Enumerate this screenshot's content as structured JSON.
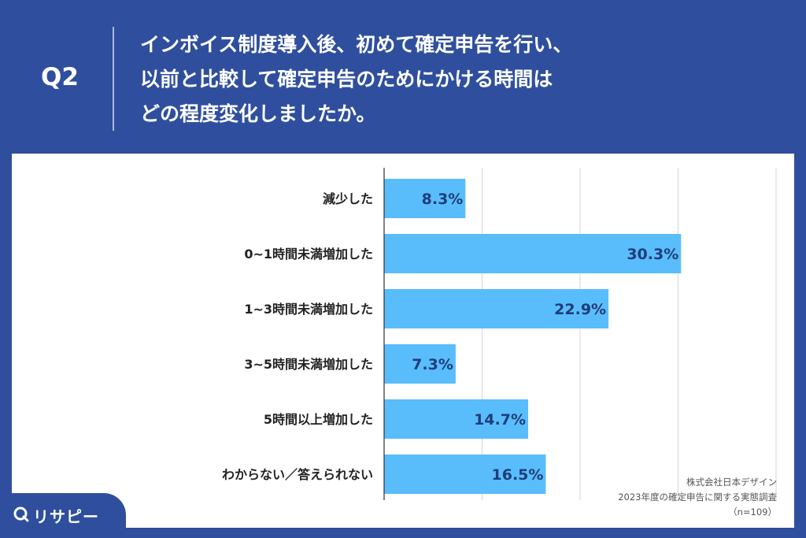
{
  "header": {
    "question_label": "Q2",
    "title_lines": [
      "インボイス制度導入後、初めて確定申告を行い、",
      "以前と比較して確定申告のためにかける時間は",
      "どの程度変化しましたか。"
    ]
  },
  "chart_data": {
    "type": "bar",
    "orientation": "horizontal",
    "categories": [
      "減少した",
      "0~1時間未満増加した",
      "1~3時間未満増加した",
      "3~5時間未満増加した",
      "5時間以上増加した",
      "わからない／答えられない"
    ],
    "values": [
      8.3,
      30.3,
      22.9,
      7.3,
      14.7,
      16.5
    ],
    "value_labels": [
      "8.3%",
      "30.3%",
      "22.9%",
      "7.3%",
      "14.7%",
      "16.5%"
    ],
    "unit": "%",
    "xlim": [
      0,
      40
    ],
    "grid": true,
    "bar_color": "#59bdfb",
    "label_color": "#1f3d7a"
  },
  "source": {
    "company": "株式会社日本デザイン",
    "survey": "2023年度の確定申告に関する実態調査",
    "sample": "（n=109）"
  },
  "logo": {
    "text": "リサピー"
  },
  "colors": {
    "background": "#2f4f9e",
    "panel": "#ffffff",
    "bar": "#59bdfb"
  }
}
